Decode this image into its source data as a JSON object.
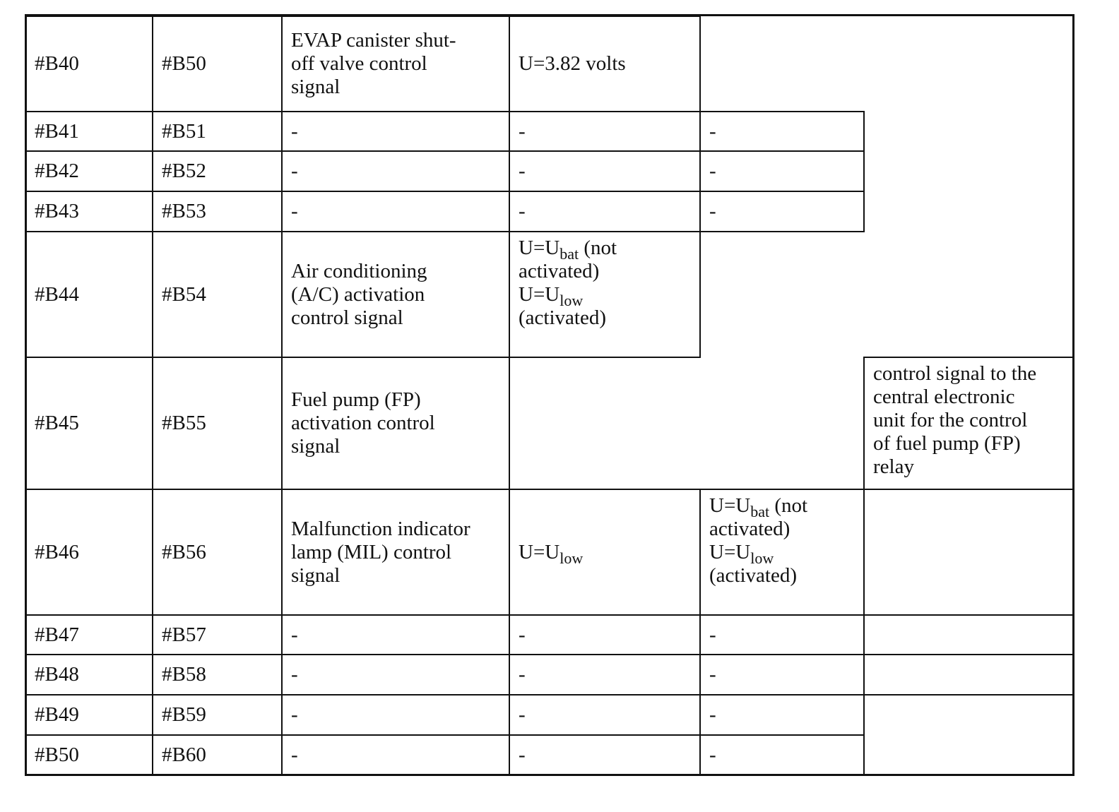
{
  "table": {
    "rows": [
      {
        "pin_a": "#B40",
        "pin_b": "#B50",
        "description": [
          {
            "t": "EVAP canister shut-\noff valve control\nsignal"
          }
        ],
        "value1": [
          {
            "t": "U=3.82 volts"
          }
        ]
      },
      {
        "pin_a": "#B41",
        "pin_b": "#B51",
        "description": [
          {
            "t": "-"
          }
        ],
        "value1": [
          {
            "t": "-"
          }
        ],
        "value2": [
          {
            "t": "-"
          }
        ]
      },
      {
        "pin_a": "#B42",
        "pin_b": "#B52",
        "description": [
          {
            "t": "-"
          }
        ],
        "value1": [
          {
            "t": "-"
          }
        ],
        "value2": [
          {
            "t": "-"
          }
        ]
      },
      {
        "pin_a": "#B43",
        "pin_b": "#B53",
        "description": [
          {
            "t": "-"
          }
        ],
        "value1": [
          {
            "t": "-"
          }
        ],
        "value2": [
          {
            "t": "-"
          }
        ]
      },
      {
        "pin_a": "#B44",
        "pin_b": "#B54",
        "description": [
          {
            "t": "Air conditioning\n(A/C) activation\ncontrol signal"
          }
        ],
        "value1": [
          {
            "t": "U=U"
          },
          {
            "sub": "bat"
          },
          {
            "t": " (not\nactivated)\nU=U"
          },
          {
            "sub": "low"
          },
          {
            "t": "\n(activated)"
          }
        ]
      },
      {
        "pin_a": "#B45",
        "pin_b": "#B55",
        "description": [
          {
            "t": "Fuel pump (FP)\nactivation control\nsignal"
          }
        ],
        "value3": [
          {
            "t": "control signal to the\ncentral electronic\nunit for the control\nof fuel pump (FP)\nrelay"
          }
        ]
      },
      {
        "pin_a": "#B46",
        "pin_b": "#B56",
        "description": [
          {
            "t": "Malfunction indicator\nlamp (MIL) control\nsignal"
          }
        ],
        "value1": [
          {
            "t": "U=U"
          },
          {
            "sub": "low"
          }
        ],
        "value2": [
          {
            "t": "U=U"
          },
          {
            "sub": "bat"
          },
          {
            "t": " (not\nactivated)\nU=U"
          },
          {
            "sub": "low"
          },
          {
            "t": "\n(activated)"
          }
        ]
      },
      {
        "pin_a": "#B47",
        "pin_b": "#B57",
        "description": [
          {
            "t": "-"
          }
        ],
        "value1": [
          {
            "t": "-"
          }
        ],
        "value2": [
          {
            "t": "-"
          }
        ]
      },
      {
        "pin_a": "#B48",
        "pin_b": "#B58",
        "description": [
          {
            "t": "-"
          }
        ],
        "value1": [
          {
            "t": "-"
          }
        ],
        "value2": [
          {
            "t": "-"
          }
        ]
      },
      {
        "pin_a": "#B49",
        "pin_b": "#B59",
        "description": [
          {
            "t": "-"
          }
        ],
        "value1": [
          {
            "t": "-"
          }
        ],
        "value2": [
          {
            "t": "-"
          }
        ]
      },
      {
        "pin_a": "#B50",
        "pin_b": "#B60",
        "description": [
          {
            "t": "-"
          }
        ],
        "value1": [
          {
            "t": "-"
          }
        ],
        "value2": [
          {
            "t": "-"
          }
        ]
      }
    ]
  }
}
